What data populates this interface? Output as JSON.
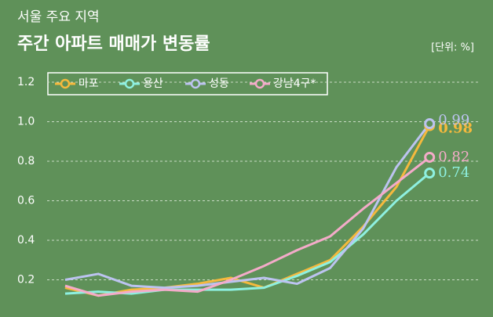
{
  "chart_data": {
    "type": "line",
    "title": "서울 주요 지역",
    "subtitle": "주간 아파트 매매가 변동률",
    "unit": "[단위: %]",
    "categories": [
      null,
      null,
      null,
      null,
      null,
      null,
      null,
      null,
      null,
      null,
      null,
      null
    ],
    "series": [
      {
        "name": "마포",
        "color": "#f5b93d",
        "values": [
          0.16,
          0.12,
          0.15,
          0.16,
          0.18,
          0.21,
          0.16,
          0.23,
          0.3,
          0.47,
          0.67,
          0.98
        ]
      },
      {
        "name": "용산",
        "color": "#8ef0e0",
        "values": [
          0.13,
          0.14,
          0.13,
          0.15,
          0.15,
          0.15,
          0.16,
          0.22,
          0.29,
          0.43,
          0.6,
          0.74
        ]
      },
      {
        "name": "성동",
        "color": "#bcc3f0",
        "values": [
          0.2,
          0.23,
          0.17,
          0.16,
          0.17,
          0.19,
          0.21,
          0.18,
          0.26,
          0.46,
          0.77,
          0.99
        ]
      },
      {
        "name": "강남4구*",
        "color": "#f4abc9",
        "values": [
          0.17,
          0.12,
          0.14,
          0.15,
          0.14,
          0.2,
          0.27,
          0.35,
          0.42,
          0.56,
          0.69,
          0.82
        ]
      }
    ],
    "ylim": [
      0,
      1.2
    ],
    "yticks": [
      {
        "value": 0.2,
        "label": "0.2"
      },
      {
        "value": 0.4,
        "label": "0.4"
      },
      {
        "value": 0.6,
        "label": "0.6"
      },
      {
        "value": 0.8,
        "label": "0.8"
      },
      {
        "value": 1.0,
        "label": "1.0"
      },
      {
        "value": 1.2,
        "label": "1.2"
      }
    ],
    "grid": true
  }
}
